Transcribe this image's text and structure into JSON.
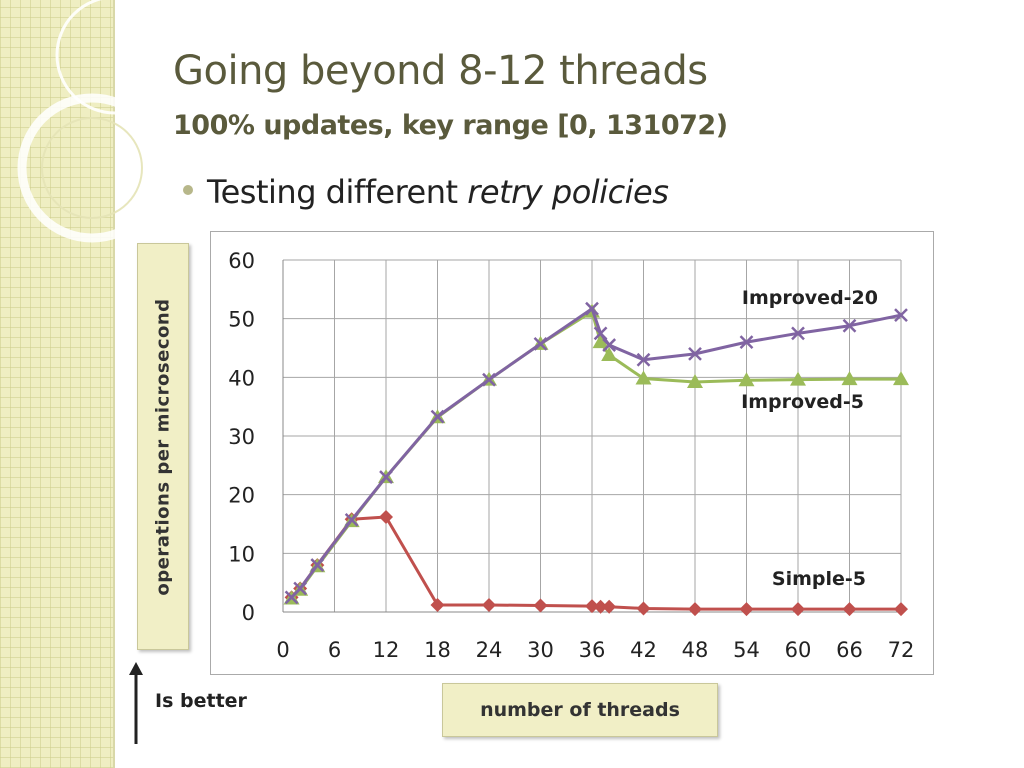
{
  "slide": {
    "title": "Going beyond 8-12 threads",
    "subtitle": "100% updates, key range [0, 131072)",
    "bullet_prefix": "Testing different ",
    "bullet_emphasis": "retry policies",
    "y_axis_caption": "operations per microsecond",
    "x_axis_caption": "number of threads",
    "better_note": "Is better"
  },
  "colors": {
    "simple": "#c0504d",
    "improved5": "#9bbb59",
    "improved20": "#8064a2",
    "background_band": "#efeec2"
  },
  "chart_data": {
    "type": "line",
    "x_ticks": [
      0,
      6,
      12,
      18,
      24,
      30,
      36,
      42,
      48,
      54,
      60,
      66,
      72
    ],
    "y_ticks": [
      0,
      10,
      20,
      30,
      40,
      50,
      60
    ],
    "xlim": [
      0,
      72
    ],
    "ylim": [
      0,
      60
    ],
    "grid": true,
    "series": [
      {
        "name": "Simple-5",
        "marker": "diamond",
        "color": "#c0504d",
        "points": [
          [
            1,
            2.5
          ],
          [
            2,
            4
          ],
          [
            4,
            8
          ],
          [
            8,
            15.8
          ],
          [
            12,
            16.2
          ],
          [
            18,
            1.2
          ],
          [
            24,
            1.2
          ],
          [
            30,
            1.1
          ],
          [
            36,
            1.0
          ],
          [
            37,
            0.9
          ],
          [
            38,
            0.9
          ],
          [
            42,
            0.6
          ],
          [
            48,
            0.5
          ],
          [
            54,
            0.5
          ],
          [
            60,
            0.5
          ],
          [
            66,
            0.5
          ],
          [
            72,
            0.5
          ]
        ]
      },
      {
        "name": "Improved-5",
        "marker": "triangle",
        "color": "#9bbb59",
        "points": [
          [
            1,
            2.3
          ],
          [
            2,
            3.8
          ],
          [
            4,
            7.8
          ],
          [
            8,
            15.5
          ],
          [
            12,
            23
          ],
          [
            18,
            33.2
          ],
          [
            24,
            39.6
          ],
          [
            30,
            45.7
          ],
          [
            36,
            51.2
          ],
          [
            37,
            46
          ],
          [
            38,
            43.8
          ],
          [
            42,
            39.8
          ],
          [
            48,
            39.2
          ],
          [
            54,
            39.5
          ],
          [
            60,
            39.6
          ],
          [
            66,
            39.7
          ],
          [
            72,
            39.7
          ]
        ]
      },
      {
        "name": "Improved-20",
        "marker": "x",
        "color": "#8064a2",
        "points": [
          [
            1,
            2.5
          ],
          [
            2,
            4
          ],
          [
            4,
            8
          ],
          [
            8,
            15.7
          ],
          [
            12,
            23
          ],
          [
            18,
            33.3
          ],
          [
            24,
            39.6
          ],
          [
            30,
            45.7
          ],
          [
            36,
            51.7
          ],
          [
            37,
            47.5
          ],
          [
            38,
            45.5
          ],
          [
            42,
            43
          ],
          [
            48,
            44
          ],
          [
            54,
            46
          ],
          [
            60,
            47.5
          ],
          [
            66,
            48.8
          ],
          [
            72,
            50.6
          ]
        ]
      }
    ]
  }
}
